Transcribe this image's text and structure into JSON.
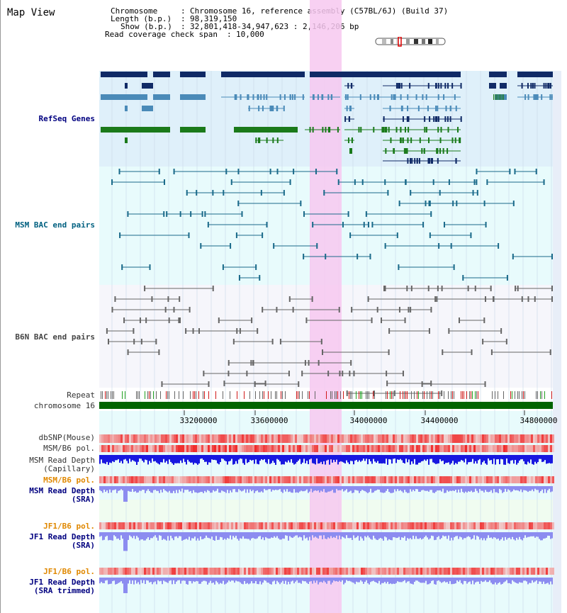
{
  "page": {
    "title": "Map View"
  },
  "info": {
    "chromosome_key": "Chromosome",
    "chromosome_val": "Chromosome 16, reference assembly (C57BL/6J) (Build 37)",
    "length_key": "Length (b.p.)",
    "length_val": "98,319,150",
    "show_key": "Show (b.p.)",
    "show_val": "32,801,418-34,947,623 : 2,146,206 bp",
    "span_key": "Read coverage check span",
    "span_val": "10,000"
  },
  "tracks": {
    "refseq": "RefSeq Genes",
    "msm_bac": "MSM BAC end pairs",
    "b6n_bac": "B6N BAC end pairs",
    "repeat": "Repeat",
    "chromosome": "chromosome 16",
    "dbsnp": "dbSNP(Mouse)",
    "msm_pol": "MSM/B6 pol.",
    "msm_depth_cap_1": "MSM Read Depth",
    "msm_depth_cap_2": "(Capillary)",
    "msm_pol_sra": "MSM/B6 pol.",
    "msm_depth_sra_1": "MSM Read Depth",
    "msm_depth_sra_2": "(SRA)",
    "jf1_pol": "JF1/B6 pol.",
    "jf1_depth_1": "JF1 Read Depth",
    "jf1_depth_2": "(SRA)",
    "jf1_pol_trim": "JF1/B6 pol.",
    "jf1_trim_1": "JF1 Read Depth",
    "jf1_trim_2": "(SRA trimmed)"
  },
  "axis": {
    "ticks": [
      "33200000",
      "33600000",
      "34000000",
      "34400000",
      "34800000"
    ]
  },
  "colors": {
    "refseq_bg": "#dff0fa",
    "msm_bg": "#e8fbfc",
    "b6n_bg": "#f6f6fb",
    "highlight": "#f7c8f0",
    "gene_navy": "#102a66",
    "gene_blue": "#4a8ab8",
    "gene_green": "#1a7a1a",
    "bac_teal": "#1a6a8a",
    "bac_gray": "#666666",
    "chrom_green": "#006400",
    "depth_blue": "#1818e0",
    "depth_light": "#8c8cf0",
    "pol_red": "#f04040"
  }
}
